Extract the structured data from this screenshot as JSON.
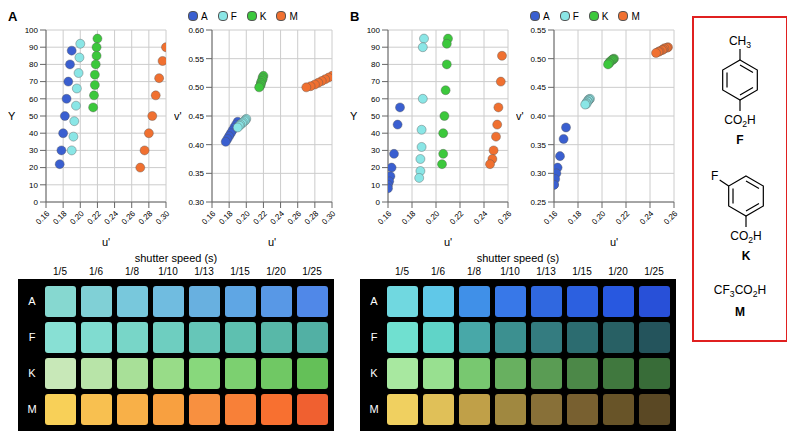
{
  "chart_data": [
    {
      "type": "scatter",
      "title": "A",
      "x_label": "u'",
      "y_label": "v'",
      "z_label": "Y",
      "grid": true,
      "xlim": [
        0.16,
        0.3
      ],
      "xticks": [
        0.16,
        0.18,
        {
          "value": 0.2,
          "label": "0.20"
        },
        0.22,
        0.24,
        0.26,
        0.28,
        {
          "value": 0.3,
          "label": "0.30"
        }
      ],
      "ylim": [
        0.3,
        0.6
      ],
      "yticks": [
        {
          "value": 0.3,
          "label": "0.30"
        },
        0.35,
        {
          "value": 0.4,
          "label": "0.40"
        },
        0.45,
        {
          "value": 0.5,
          "label": "0.50"
        },
        0.55,
        {
          "value": 0.6,
          "label": "0.60"
        }
      ],
      "zlim": [
        0,
        100
      ],
      "zticks": [
        0,
        10,
        20,
        30,
        40,
        50,
        60,
        70,
        80,
        90,
        100
      ],
      "series": [
        {
          "name": "A",
          "color": "#3a5fd0",
          "x": [
            0.19,
            0.188,
            0.186,
            0.184,
            0.182,
            0.18,
            0.178,
            0.176
          ],
          "y": [
            0.44,
            0.435,
            0.43,
            0.425,
            0.42,
            0.415,
            0.41,
            0.405
          ],
          "z": [
            88,
            80,
            70,
            60,
            50,
            40,
            30,
            22
          ]
        },
        {
          "name": "F",
          "color": "#8ae6e6",
          "x": [
            0.2,
            0.199,
            0.198,
            0.196,
            0.195,
            0.193,
            0.192,
            0.19
          ],
          "y": [
            0.445,
            0.443,
            0.441,
            0.439,
            0.437,
            0.435,
            0.433,
            0.43
          ],
          "z": [
            92,
            84,
            75,
            66,
            56,
            47,
            38,
            30
          ]
        },
        {
          "name": "K",
          "color": "#3cc83c",
          "x": [
            0.22,
            0.219,
            0.219,
            0.218,
            0.217,
            0.217,
            0.216,
            0.215
          ],
          "y": [
            0.52,
            0.517,
            0.514,
            0.511,
            0.508,
            0.505,
            0.502,
            0.5
          ],
          "z": [
            95,
            90,
            85,
            80,
            74,
            68,
            62,
            55
          ]
        },
        {
          "name": "M",
          "color": "#f07030",
          "x": [
            0.3,
            0.296,
            0.292,
            0.288,
            0.284,
            0.28,
            0.275,
            0.27
          ],
          "y": [
            0.52,
            0.517,
            0.514,
            0.511,
            0.508,
            0.505,
            0.502,
            0.5
          ],
          "z": [
            90,
            82,
            72,
            62,
            50,
            40,
            30,
            20
          ]
        }
      ]
    },
    {
      "type": "scatter",
      "title": "B",
      "x_label": "u'",
      "y_label": "v'",
      "z_label": "Y",
      "grid": true,
      "xlim": [
        0.16,
        0.26
      ],
      "xticks": [
        0.16,
        0.18,
        {
          "value": 0.2,
          "label": "0.20"
        },
        0.22,
        0.24,
        0.26
      ],
      "ylim": [
        0.25,
        0.55
      ],
      "yticks": [
        0.25,
        {
          "value": 0.3,
          "label": "0.30"
        },
        0.35,
        {
          "value": 0.4,
          "label": "0.40"
        },
        0.45,
        {
          "value": 0.5,
          "label": "0.50"
        },
        0.55
      ],
      "zlim": [
        0,
        100
      ],
      "zticks": [
        0,
        10,
        20,
        30,
        40,
        50,
        60,
        70,
        80,
        90,
        100
      ],
      "series": [
        {
          "name": "A",
          "color": "#3a5fd0",
          "x": [
            0.17,
            0.168,
            0.165,
            0.163,
            0.162,
            0.161,
            0.16,
            0.16
          ],
          "y": [
            0.38,
            0.36,
            0.33,
            0.31,
            0.3,
            0.29,
            0.28,
            0.28
          ],
          "z": [
            55,
            45,
            28,
            20,
            15,
            12,
            10,
            8
          ]
        },
        {
          "name": "F",
          "color": "#8ae6e6",
          "x": [
            0.19,
            0.189,
            0.189,
            0.188,
            0.188,
            0.187,
            0.187,
            0.186
          ],
          "y": [
            0.43,
            0.429,
            0.428,
            0.426,
            0.425,
            0.423,
            0.421,
            0.42
          ],
          "z": [
            95,
            90,
            60,
            42,
            32,
            25,
            18,
            14
          ]
        },
        {
          "name": "K",
          "color": "#3cc83c",
          "x": [
            0.21,
            0.209,
            0.209,
            0.208,
            0.207,
            0.206,
            0.206,
            0.205
          ],
          "y": [
            0.5,
            0.499,
            0.498,
            0.497,
            0.495,
            0.493,
            0.492,
            0.49
          ],
          "z": [
            95,
            92,
            80,
            65,
            50,
            40,
            28,
            22
          ]
        },
        {
          "name": "M",
          "color": "#f07030",
          "x": [
            0.255,
            0.254,
            0.252,
            0.251,
            0.25,
            0.248,
            0.247,
            0.245
          ],
          "y": [
            0.52,
            0.519,
            0.518,
            0.516,
            0.515,
            0.513,
            0.512,
            0.51
          ],
          "z": [
            85,
            70,
            55,
            45,
            38,
            30,
            25,
            22
          ]
        }
      ]
    }
  ],
  "swatches": [
    {
      "title": "shutter speed (s)",
      "columns": [
        "1/5",
        "1/6",
        "1/8",
        "1/10",
        "1/13",
        "1/15",
        "1/20",
        "1/25"
      ],
      "rows": [
        {
          "label": "A",
          "colors": [
            "#86d8d0",
            "#80d0d6",
            "#78c8dc",
            "#70bce0",
            "#68b0e0",
            "#5fa6e4",
            "#5898e6",
            "#5088e8"
          ]
        },
        {
          "label": "F",
          "colors": [
            "#88e0d4",
            "#80dcd0",
            "#78d6c8",
            "#6ecec0",
            "#66c6b8",
            "#5ec0b0",
            "#58b8a8",
            "#52b0a4"
          ]
        },
        {
          "label": "K",
          "colors": [
            "#c8e8b8",
            "#b8e4a8",
            "#a8e098",
            "#98dc88",
            "#88d87c",
            "#7cd070",
            "#70c864",
            "#64c058"
          ]
        },
        {
          "label": "M",
          "colors": [
            "#f8d058",
            "#f8c050",
            "#f8b048",
            "#f8a040",
            "#f89040",
            "#f88038",
            "#f87030",
            "#f06030"
          ]
        }
      ]
    },
    {
      "title": "shutter speed (s)",
      "columns": [
        "1/5",
        "1/6",
        "1/8",
        "1/10",
        "1/13",
        "1/15",
        "1/20",
        "1/25"
      ],
      "rows": [
        {
          "label": "A",
          "colors": [
            "#70d8e0",
            "#60c8e8",
            "#4090e8",
            "#3878e8",
            "#3068e0",
            "#2c60e0",
            "#2858e0",
            "#2850d8"
          ]
        },
        {
          "label": "F",
          "colors": [
            "#70e0d0",
            "#60d4c8",
            "#48a8a8",
            "#3c9090",
            "#347c80",
            "#2c6c70",
            "#286064",
            "#24545c"
          ]
        },
        {
          "label": "K",
          "colors": [
            "#a8e8a0",
            "#98e090",
            "#78c870",
            "#68b060",
            "#5a9c54",
            "#4c8848",
            "#40783e",
            "#386c38"
          ]
        },
        {
          "label": "M",
          "colors": [
            "#f0d060",
            "#e0c058",
            "#c0a048",
            "#a08840",
            "#887038",
            "#786030",
            "#685428",
            "#5a4824"
          ]
        }
      ]
    }
  ],
  "structures": [
    {
      "label": "F",
      "substituent": "CH3",
      "group": "CO2H"
    },
    {
      "label": "K",
      "substituent": "F",
      "group": "CO2H"
    },
    {
      "label": "M",
      "formula": "CF3CO2H"
    }
  ]
}
